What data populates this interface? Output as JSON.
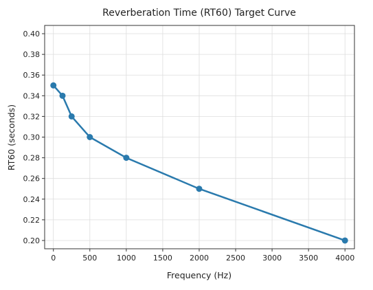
{
  "chart_data": {
    "type": "line",
    "title": "Reverberation Time (RT60) Target Curve",
    "x_label": "Frequency (Hz)",
    "y_label": "RT60 (seconds)",
    "series": [
      {
        "name": "RT60",
        "color": "#2a7aad",
        "x": [
          0,
          125,
          250,
          500,
          1000,
          2000,
          4000
        ],
        "values": [
          0.35,
          0.34,
          0.32,
          0.3,
          0.28,
          0.25,
          0.2
        ]
      }
    ],
    "xlim": [
      -120,
      4130
    ],
    "ylim": [
      0.192,
      0.408
    ],
    "xticks": [
      0,
      500,
      1000,
      1500,
      2000,
      2500,
      3000,
      3500,
      4000
    ],
    "yticks": [
      {
        "value": 0.2,
        "label": "0.20"
      },
      {
        "value": 0.22,
        "label": "0.22"
      },
      {
        "value": 0.24,
        "label": "0.24"
      },
      {
        "value": 0.26,
        "label": "0.26"
      },
      {
        "value": 0.28,
        "label": "0.28"
      },
      {
        "value": 0.3,
        "label": "0.30"
      },
      {
        "value": 0.32,
        "label": "0.32"
      },
      {
        "value": 0.34,
        "label": "0.34"
      },
      {
        "value": 0.36,
        "label": "0.36"
      },
      {
        "value": 0.38,
        "label": "0.38"
      },
      {
        "value": 0.4,
        "label": "0.40"
      }
    ],
    "grid": true
  }
}
